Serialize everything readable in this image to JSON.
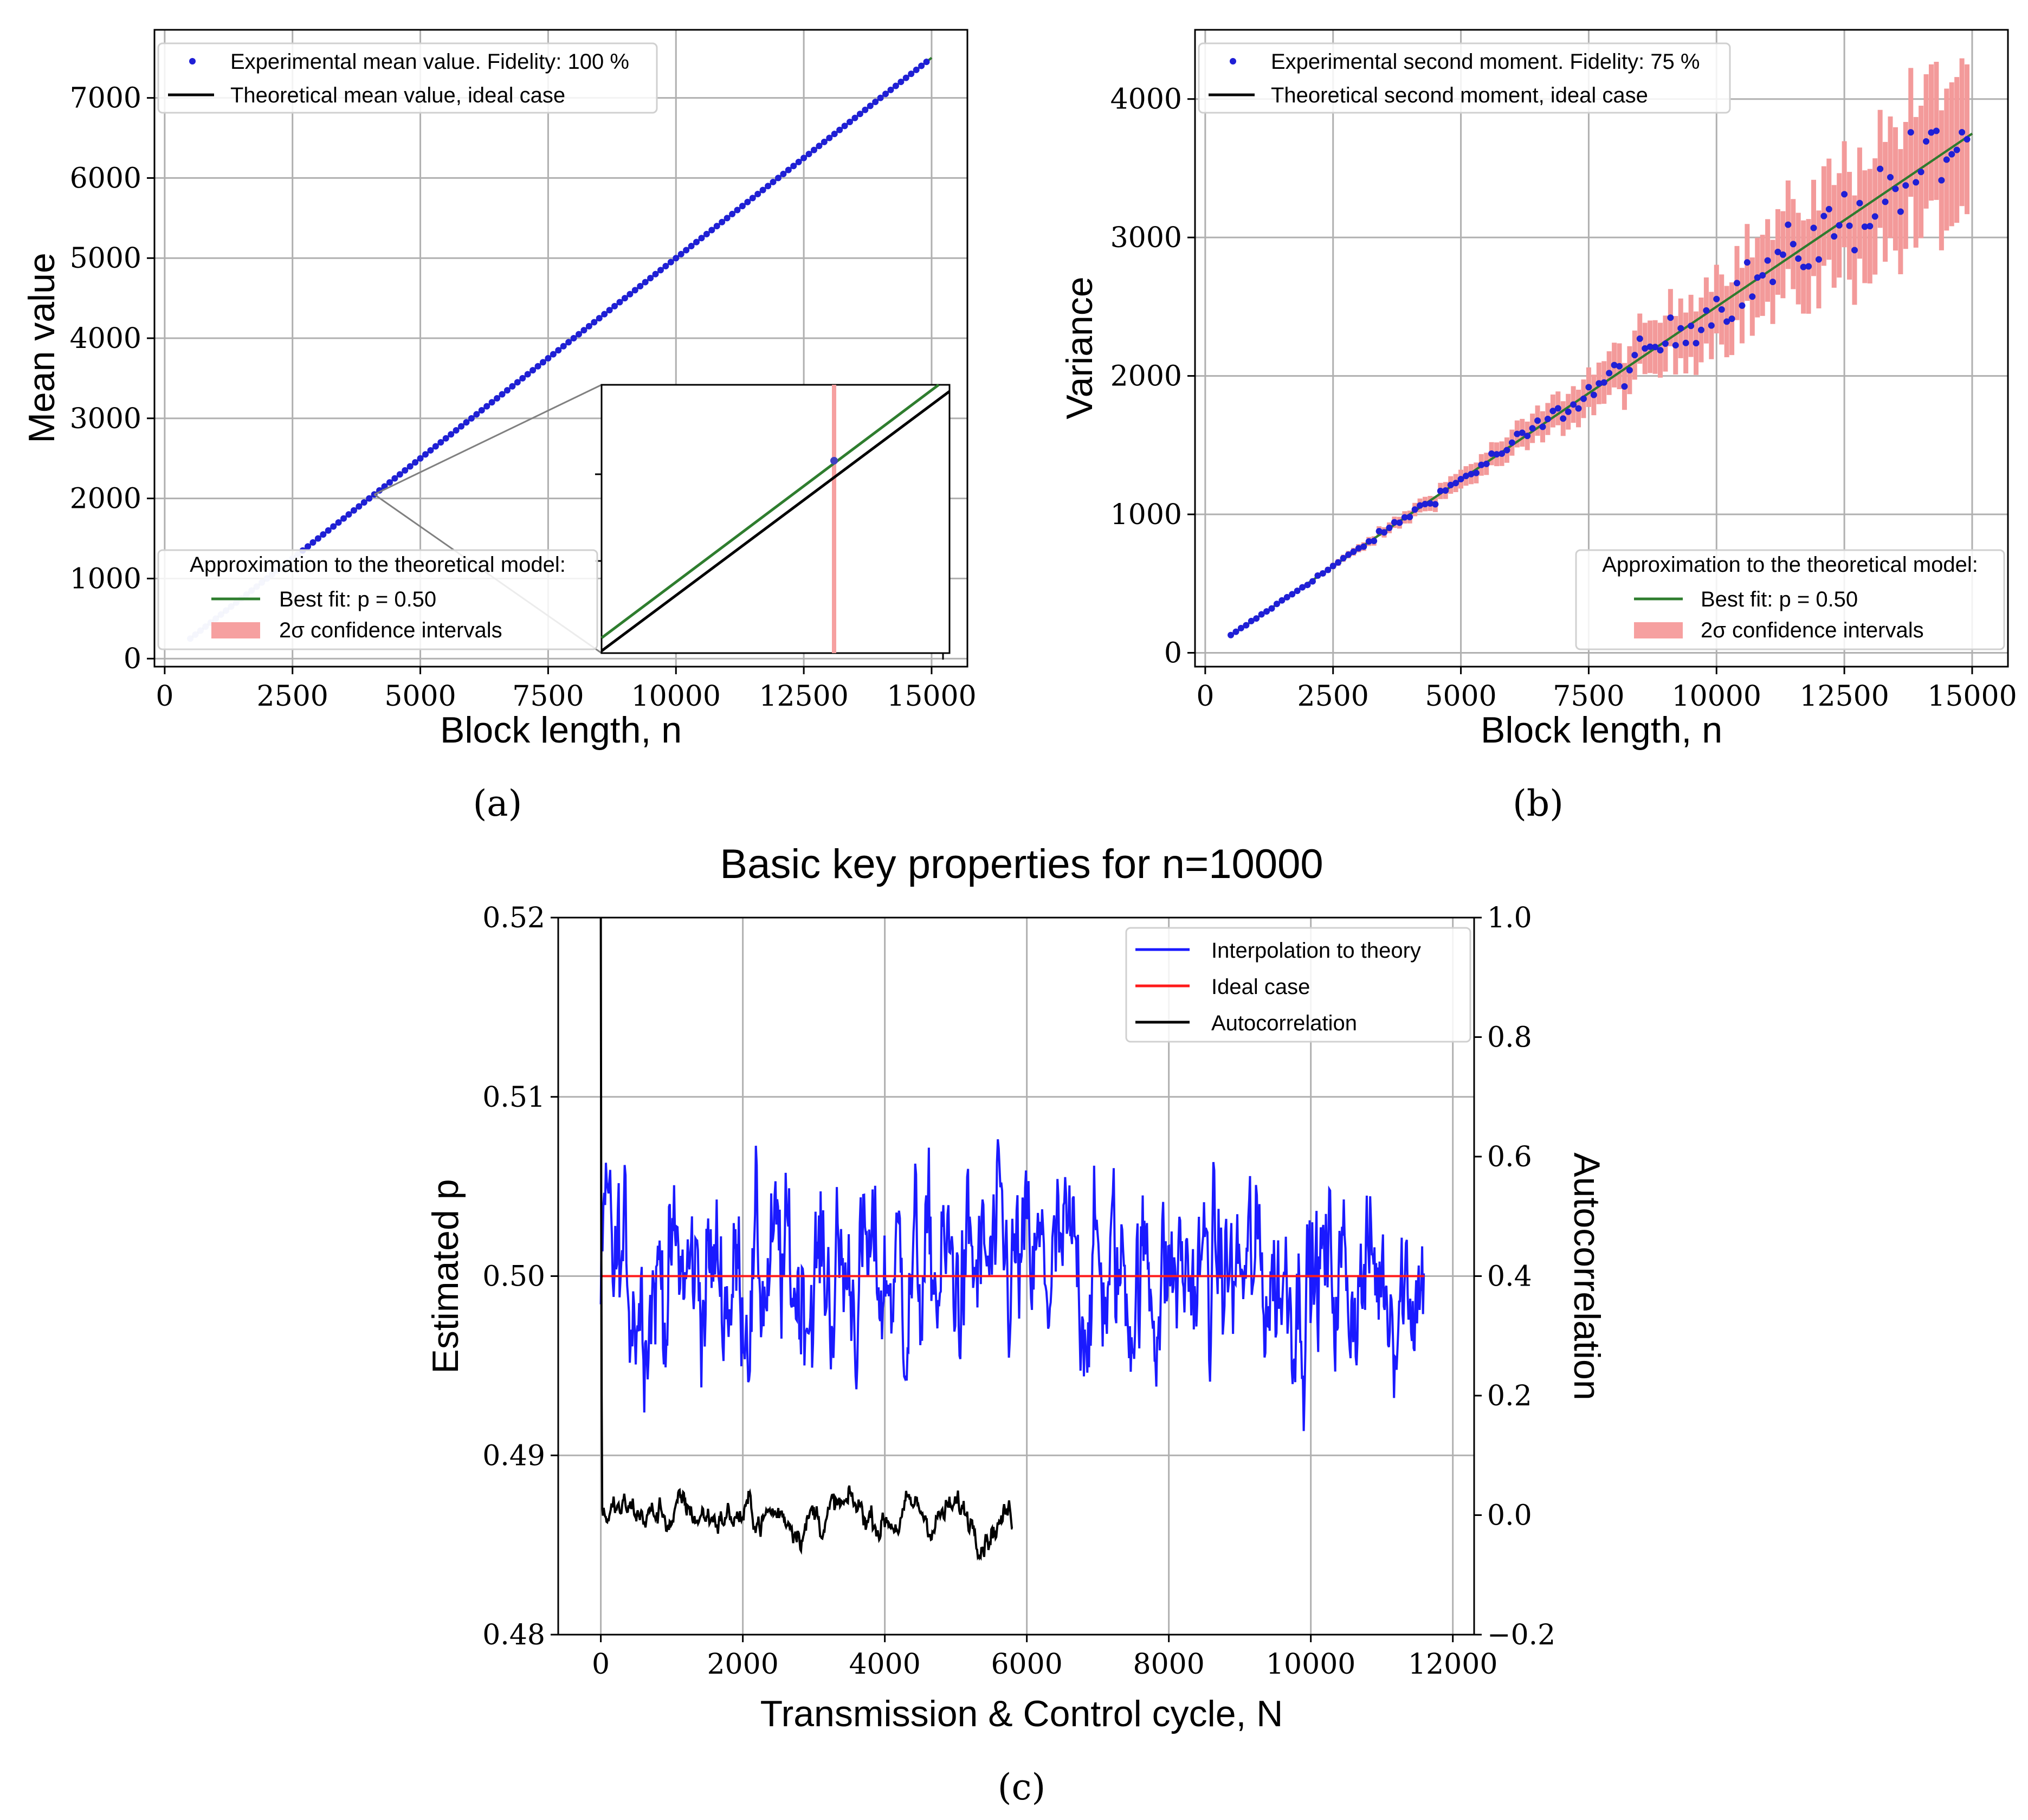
{
  "chart_data": [
    {
      "type": "line",
      "caption": "(a)",
      "xlabel": "Block length, n",
      "ylabel": "Mean value",
      "xlim": [
        -200,
        15700
      ],
      "ylim": [
        -100,
        7850
      ],
      "xticks": [
        0,
        2500,
        5000,
        7500,
        10000,
        12500,
        15000
      ],
      "yticks": [
        0,
        1000,
        2000,
        3000,
        4000,
        5000,
        6000,
        7000
      ],
      "grid": true,
      "legend_top": {
        "placement": "top-left",
        "entries": [
          "Experimental mean value. Fidelity: 100 %",
          "Theoretical mean value, ideal case"
        ]
      },
      "legend_bottom": {
        "placement": "bottom-left",
        "title": "Approximation to the theoretical model:",
        "entries": [
          "Best fit: p = 0.50",
          "2σ confidence intervals"
        ]
      },
      "series": [
        {
          "name": "Experimental mean value. Fidelity: 100 %",
          "style": "scatter",
          "color": "#1f1fd6",
          "x_range": [
            500,
            14900
          ],
          "slope": 0.5
        },
        {
          "name": "Theoretical mean value, ideal case",
          "style": "line",
          "color": "#000000",
          "x_range": [
            500,
            15000
          ],
          "slope": 0.5
        },
        {
          "name": "Best fit: p = 0.50",
          "style": "line",
          "color": "#2e7d2e",
          "x_range": [
            500,
            15000
          ],
          "slope": 0.5
        }
      ],
      "inset": {
        "zoom_center": [
          4100,
          2050
        ]
      }
    },
    {
      "type": "line",
      "caption": "(b)",
      "xlabel": "Block length, n",
      "ylabel": "Variance",
      "xlim": [
        -200,
        15700
      ],
      "ylim": [
        -100,
        4500
      ],
      "xticks": [
        0,
        2500,
        5000,
        7500,
        10000,
        12500,
        15000
      ],
      "yticks": [
        0,
        1000,
        2000,
        3000,
        4000
      ],
      "grid": true,
      "legend_top": {
        "placement": "top-left",
        "entries": [
          "Experimental second moment. Fidelity: 75 %",
          "Theoretical second moment, ideal case"
        ]
      },
      "legend_bottom": {
        "placement": "bottom-right",
        "title": "Approximation to the theoretical model:",
        "entries": [
          "Best fit: p = 0.50",
          "2σ confidence intervals"
        ]
      },
      "series": [
        {
          "name": "Experimental second moment. Fidelity: 75 %",
          "style": "scatter",
          "color": "#1f1fd6",
          "x_range": [
            500,
            14900
          ]
        },
        {
          "name": "Theoretical second moment, ideal case",
          "style": "line",
          "color": "#000000",
          "x": [
            500,
            15000
          ],
          "y": [
            125,
            3750
          ]
        },
        {
          "name": "Best fit: p = 0.50",
          "style": "line",
          "color": "#2e7d2e",
          "x": [
            500,
            15000
          ],
          "y": [
            125,
            3750
          ]
        }
      ]
    },
    {
      "type": "line",
      "caption": "(c)",
      "title": "Basic key properties for n=10000",
      "xlabel": "Transmission & Control cycle, N",
      "ylabel": "Estimated p",
      "ylabel_right": "Autocorrelation",
      "xlim": [
        -600,
        12300
      ],
      "ylim": [
        0.48,
        0.52
      ],
      "ylim_right": [
        -0.2,
        1.0
      ],
      "xticks": [
        0,
        2000,
        4000,
        6000,
        8000,
        10000,
        12000
      ],
      "yticks": [
        "0.48",
        "0.49",
        "0.50",
        "0.51",
        "0.52"
      ],
      "yticks_right": [
        "−0.2",
        "0.0",
        "0.2",
        "0.4",
        "0.6",
        "0.8",
        "1.0"
      ],
      "grid": true,
      "legend": {
        "placement": "top-right",
        "entries": [
          "Interpolation to theory",
          "Ideal case",
          "Autocorrelation"
        ]
      },
      "series": [
        {
          "name": "Interpolation to theory",
          "color": "#1a1aff",
          "x_range": [
            0,
            11600
          ],
          "mean": 0.5,
          "range": [
            0.4875,
            0.5131
          ]
        },
        {
          "name": "Ideal case",
          "color": "#ff1a1a",
          "x": [
            0,
            11600
          ],
          "y": [
            0.5,
            0.5
          ]
        },
        {
          "name": "Autocorrelation",
          "color": "#000000",
          "x_range": [
            0,
            5800
          ],
          "start": 1.0,
          "range": [
            -0.13,
            0.11
          ]
        }
      ]
    }
  ]
}
